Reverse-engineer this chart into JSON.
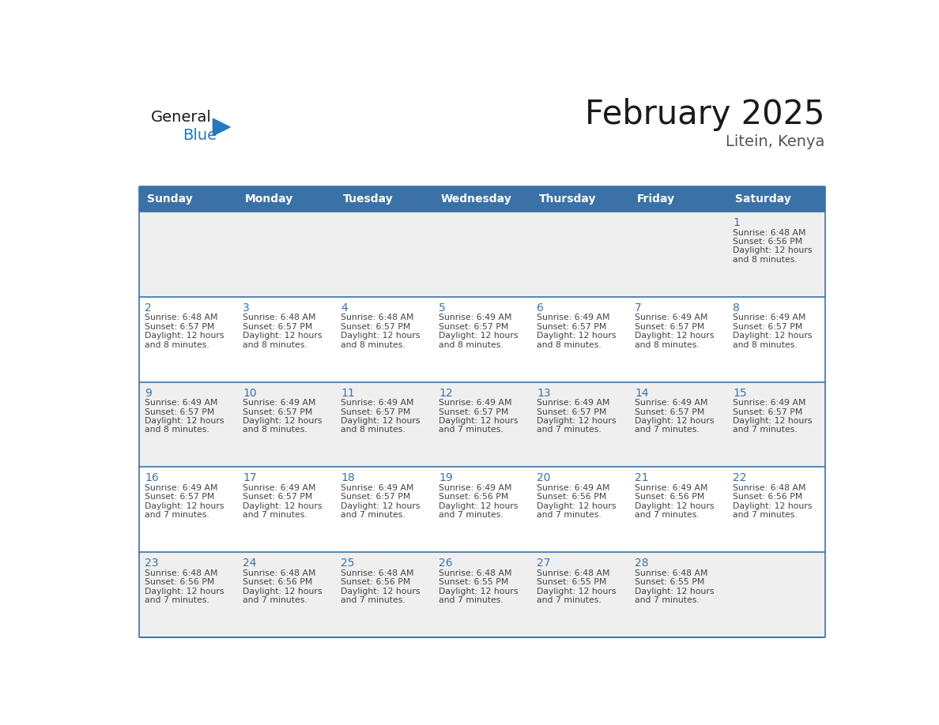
{
  "title": "February 2025",
  "subtitle": "Litein, Kenya",
  "days_of_week": [
    "Sunday",
    "Monday",
    "Tuesday",
    "Wednesday",
    "Thursday",
    "Friday",
    "Saturday"
  ],
  "header_bg": "#3a72a8",
  "header_text": "#ffffff",
  "cell_bg_white": "#ffffff",
  "cell_bg_gray": "#efefef",
  "border_color": "#3a72a8",
  "day_num_color": "#3a72a8",
  "info_color": "#444444",
  "title_color": "#1a1a1a",
  "subtitle_color": "#555555",
  "logo_general_color": "#1a1a1a",
  "logo_blue_color": "#2478c0",
  "weeks": [
    [
      null,
      null,
      null,
      null,
      null,
      null,
      1
    ],
    [
      2,
      3,
      4,
      5,
      6,
      7,
      8
    ],
    [
      9,
      10,
      11,
      12,
      13,
      14,
      15
    ],
    [
      16,
      17,
      18,
      19,
      20,
      21,
      22
    ],
    [
      23,
      24,
      25,
      26,
      27,
      28,
      null
    ]
  ],
  "cell_data": {
    "1": {
      "sunrise": "6:48 AM",
      "sunset": "6:56 PM",
      "dl1": "Daylight: 12 hours",
      "dl2": "and 8 minutes."
    },
    "2": {
      "sunrise": "6:48 AM",
      "sunset": "6:57 PM",
      "dl1": "Daylight: 12 hours",
      "dl2": "and 8 minutes."
    },
    "3": {
      "sunrise": "6:48 AM",
      "sunset": "6:57 PM",
      "dl1": "Daylight: 12 hours",
      "dl2": "and 8 minutes."
    },
    "4": {
      "sunrise": "6:48 AM",
      "sunset": "6:57 PM",
      "dl1": "Daylight: 12 hours",
      "dl2": "and 8 minutes."
    },
    "5": {
      "sunrise": "6:49 AM",
      "sunset": "6:57 PM",
      "dl1": "Daylight: 12 hours",
      "dl2": "and 8 minutes."
    },
    "6": {
      "sunrise": "6:49 AM",
      "sunset": "6:57 PM",
      "dl1": "Daylight: 12 hours",
      "dl2": "and 8 minutes."
    },
    "7": {
      "sunrise": "6:49 AM",
      "sunset": "6:57 PM",
      "dl1": "Daylight: 12 hours",
      "dl2": "and 8 minutes."
    },
    "8": {
      "sunrise": "6:49 AM",
      "sunset": "6:57 PM",
      "dl1": "Daylight: 12 hours",
      "dl2": "and 8 minutes."
    },
    "9": {
      "sunrise": "6:49 AM",
      "sunset": "6:57 PM",
      "dl1": "Daylight: 12 hours",
      "dl2": "and 8 minutes."
    },
    "10": {
      "sunrise": "6:49 AM",
      "sunset": "6:57 PM",
      "dl1": "Daylight: 12 hours",
      "dl2": "and 8 minutes."
    },
    "11": {
      "sunrise": "6:49 AM",
      "sunset": "6:57 PM",
      "dl1": "Daylight: 12 hours",
      "dl2": "and 8 minutes."
    },
    "12": {
      "sunrise": "6:49 AM",
      "sunset": "6:57 PM",
      "dl1": "Daylight: 12 hours",
      "dl2": "and 7 minutes."
    },
    "13": {
      "sunrise": "6:49 AM",
      "sunset": "6:57 PM",
      "dl1": "Daylight: 12 hours",
      "dl2": "and 7 minutes."
    },
    "14": {
      "sunrise": "6:49 AM",
      "sunset": "6:57 PM",
      "dl1": "Daylight: 12 hours",
      "dl2": "and 7 minutes."
    },
    "15": {
      "sunrise": "6:49 AM",
      "sunset": "6:57 PM",
      "dl1": "Daylight: 12 hours",
      "dl2": "and 7 minutes."
    },
    "16": {
      "sunrise": "6:49 AM",
      "sunset": "6:57 PM",
      "dl1": "Daylight: 12 hours",
      "dl2": "and 7 minutes."
    },
    "17": {
      "sunrise": "6:49 AM",
      "sunset": "6:57 PM",
      "dl1": "Daylight: 12 hours",
      "dl2": "and 7 minutes."
    },
    "18": {
      "sunrise": "6:49 AM",
      "sunset": "6:57 PM",
      "dl1": "Daylight: 12 hours",
      "dl2": "and 7 minutes."
    },
    "19": {
      "sunrise": "6:49 AM",
      "sunset": "6:56 PM",
      "dl1": "Daylight: 12 hours",
      "dl2": "and 7 minutes."
    },
    "20": {
      "sunrise": "6:49 AM",
      "sunset": "6:56 PM",
      "dl1": "Daylight: 12 hours",
      "dl2": "and 7 minutes."
    },
    "21": {
      "sunrise": "6:49 AM",
      "sunset": "6:56 PM",
      "dl1": "Daylight: 12 hours",
      "dl2": "and 7 minutes."
    },
    "22": {
      "sunrise": "6:48 AM",
      "sunset": "6:56 PM",
      "dl1": "Daylight: 12 hours",
      "dl2": "and 7 minutes."
    },
    "23": {
      "sunrise": "6:48 AM",
      "sunset": "6:56 PM",
      "dl1": "Daylight: 12 hours",
      "dl2": "and 7 minutes."
    },
    "24": {
      "sunrise": "6:48 AM",
      "sunset": "6:56 PM",
      "dl1": "Daylight: 12 hours",
      "dl2": "and 7 minutes."
    },
    "25": {
      "sunrise": "6:48 AM",
      "sunset": "6:56 PM",
      "dl1": "Daylight: 12 hours",
      "dl2": "and 7 minutes."
    },
    "26": {
      "sunrise": "6:48 AM",
      "sunset": "6:55 PM",
      "dl1": "Daylight: 12 hours",
      "dl2": "and 7 minutes."
    },
    "27": {
      "sunrise": "6:48 AM",
      "sunset": "6:55 PM",
      "dl1": "Daylight: 12 hours",
      "dl2": "and 7 minutes."
    },
    "28": {
      "sunrise": "6:48 AM",
      "sunset": "6:55 PM",
      "dl1": "Daylight: 12 hours",
      "dl2": "and 7 minutes."
    }
  }
}
